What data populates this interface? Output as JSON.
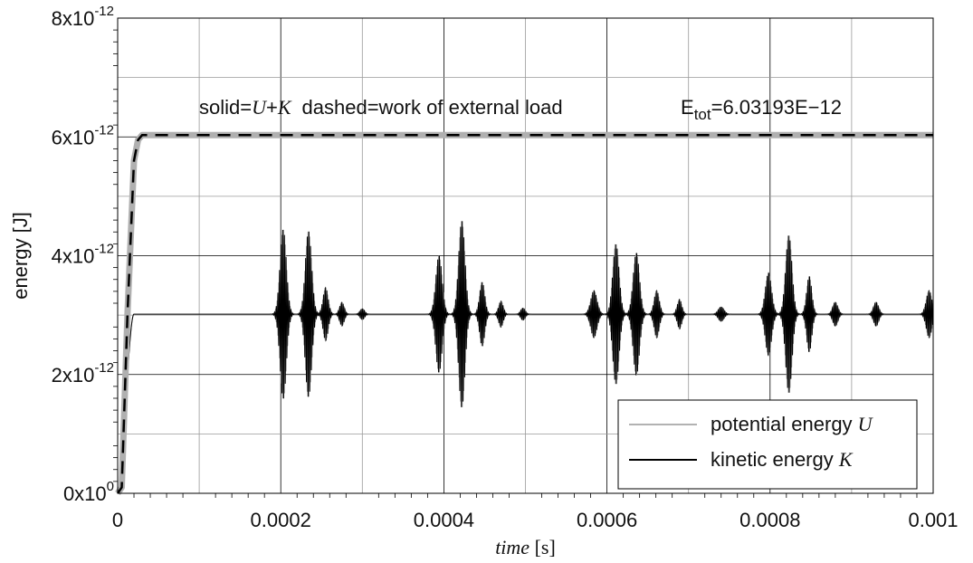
{
  "chart_data": {
    "type": "line",
    "xlabel": {
      "var": "time",
      "unit": " [s]"
    },
    "ylabel": "energy [J]",
    "xlim": [
      0,
      0.001
    ],
    "ylim": [
      0,
      8e-12
    ],
    "x_ticks": [
      0,
      0.0002,
      0.0004,
      0.0006,
      0.0008,
      0.001
    ],
    "x_tick_labels": [
      "0",
      "0.0002",
      "0.0004",
      "0.0006",
      "0.0008",
      "0.001"
    ],
    "x_minor_ticks": [
      0.0001,
      0.0003,
      0.0005,
      0.0007,
      0.0009
    ],
    "y_ticks": [
      0,
      2e-12,
      4e-12,
      6e-12,
      8e-12
    ],
    "y_tick_labels": [
      {
        "base": "0x10",
        "exp": "0"
      },
      {
        "base": "2x10",
        "exp": "-12"
      },
      {
        "base": "4x10",
        "exp": "-12"
      },
      {
        "base": "6x10",
        "exp": "-12"
      },
      {
        "base": "8x10",
        "exp": "-12"
      }
    ],
    "y_minor_ticks": [
      1e-12,
      3e-12,
      5e-12,
      7e-12
    ],
    "grid": true,
    "annotations": {
      "solid_prefix": "solid=",
      "solid_U": "U",
      "solid_plus": "+",
      "solid_K": "K",
      "dashed_text": "dashed=work of external load",
      "etot_E": "E",
      "etot_sub": "tot",
      "etot_value": "=6.03193E−12"
    },
    "series": [
      {
        "name": "potential energy U",
        "style": "solid",
        "color": "#999999",
        "description": "oscillates around 3.016e-12 after ramp, mirror of kinetic energy"
      },
      {
        "name": "kinetic energy K",
        "style": "solid",
        "color": "#000000",
        "description": "ramps 0 to 3.016e-12 by t=0.00002 s, bursts of oscillation centered near t=0.0002, 0.00023, 0.0004, 0.00042, 0.0006, 0.00062, 0.0008, 0.00082 with amplitude up to ~1.6e-12"
      },
      {
        "name": "U+K",
        "style": "solid-thick",
        "color": "#b0b0b0",
        "x": [
          0,
          5e-06,
          1.2e-05,
          2e-05,
          2.5e-05,
          3e-05,
          0.001
        ],
        "y": [
          0,
          1e-13,
          3e-12,
          5.6e-12,
          5.95e-12,
          6.03e-12,
          6.03e-12
        ]
      },
      {
        "name": "work of external load",
        "style": "dashed",
        "color": "#000000",
        "x": [
          0,
          5e-06,
          1.2e-05,
          2e-05,
          2.5e-05,
          3e-05,
          0.001
        ],
        "y": [
          0,
          1e-13,
          3e-12,
          5.6e-12,
          5.95e-12,
          6.03e-12,
          6.03e-12
        ]
      }
    ],
    "oscillation": {
      "baseline": 3.016e-12,
      "ramp_end": 2e-05,
      "period": 2e-06,
      "bursts": [
        {
          "center": 0.000203,
          "width": 5.5e-06,
          "amp": 1.45e-12
        },
        {
          "center": 0.000234,
          "width": 5.5e-06,
          "amp": 1.42e-12
        },
        {
          "center": 0.000255,
          "width": 4.5e-06,
          "amp": 4.5e-13
        },
        {
          "center": 0.000275,
          "width": 4e-06,
          "amp": 2e-13
        },
        {
          "center": 0.0003,
          "width": 4e-06,
          "amp": 9e-14
        },
        {
          "center": 0.000394,
          "width": 5.5e-06,
          "amp": 1e-12
        },
        {
          "center": 0.000422,
          "width": 5.5e-06,
          "amp": 1.6e-12
        },
        {
          "center": 0.000447,
          "width": 4.5e-06,
          "amp": 5.5e-13
        },
        {
          "center": 0.00047,
          "width": 4e-06,
          "amp": 2.2e-13
        },
        {
          "center": 0.000497,
          "width": 4e-06,
          "amp": 1e-13
        },
        {
          "center": 0.000584,
          "width": 5.5e-06,
          "amp": 4e-13
        },
        {
          "center": 0.000611,
          "width": 5.5e-06,
          "amp": 1.2e-12
        },
        {
          "center": 0.000636,
          "width": 5.5e-06,
          "amp": 1.05e-12
        },
        {
          "center": 0.000661,
          "width": 4.5e-06,
          "amp": 4e-13
        },
        {
          "center": 0.000689,
          "width": 4e-06,
          "amp": 2.5e-13
        },
        {
          "center": 0.00074,
          "width": 5e-06,
          "amp": 1.2e-13
        },
        {
          "center": 0.000798,
          "width": 5.5e-06,
          "amp": 7e-13
        },
        {
          "center": 0.000823,
          "width": 5.5e-06,
          "amp": 1.35e-12
        },
        {
          "center": 0.000848,
          "width": 4.5e-06,
          "amp": 6.5e-13
        },
        {
          "center": 0.00088,
          "width": 4.5e-06,
          "amp": 2e-13
        },
        {
          "center": 0.00093,
          "width": 4.5e-06,
          "amp": 2e-13
        },
        {
          "center": 0.000995,
          "width": 5e-06,
          "amp": 4e-13
        }
      ]
    },
    "legend": {
      "position": "bottom-right",
      "entries": [
        {
          "label": "potential energy ",
          "symbol": "U",
          "color": "#999999"
        },
        {
          "label": "kinetic energy ",
          "symbol": "K",
          "color": "#000000"
        }
      ]
    }
  }
}
